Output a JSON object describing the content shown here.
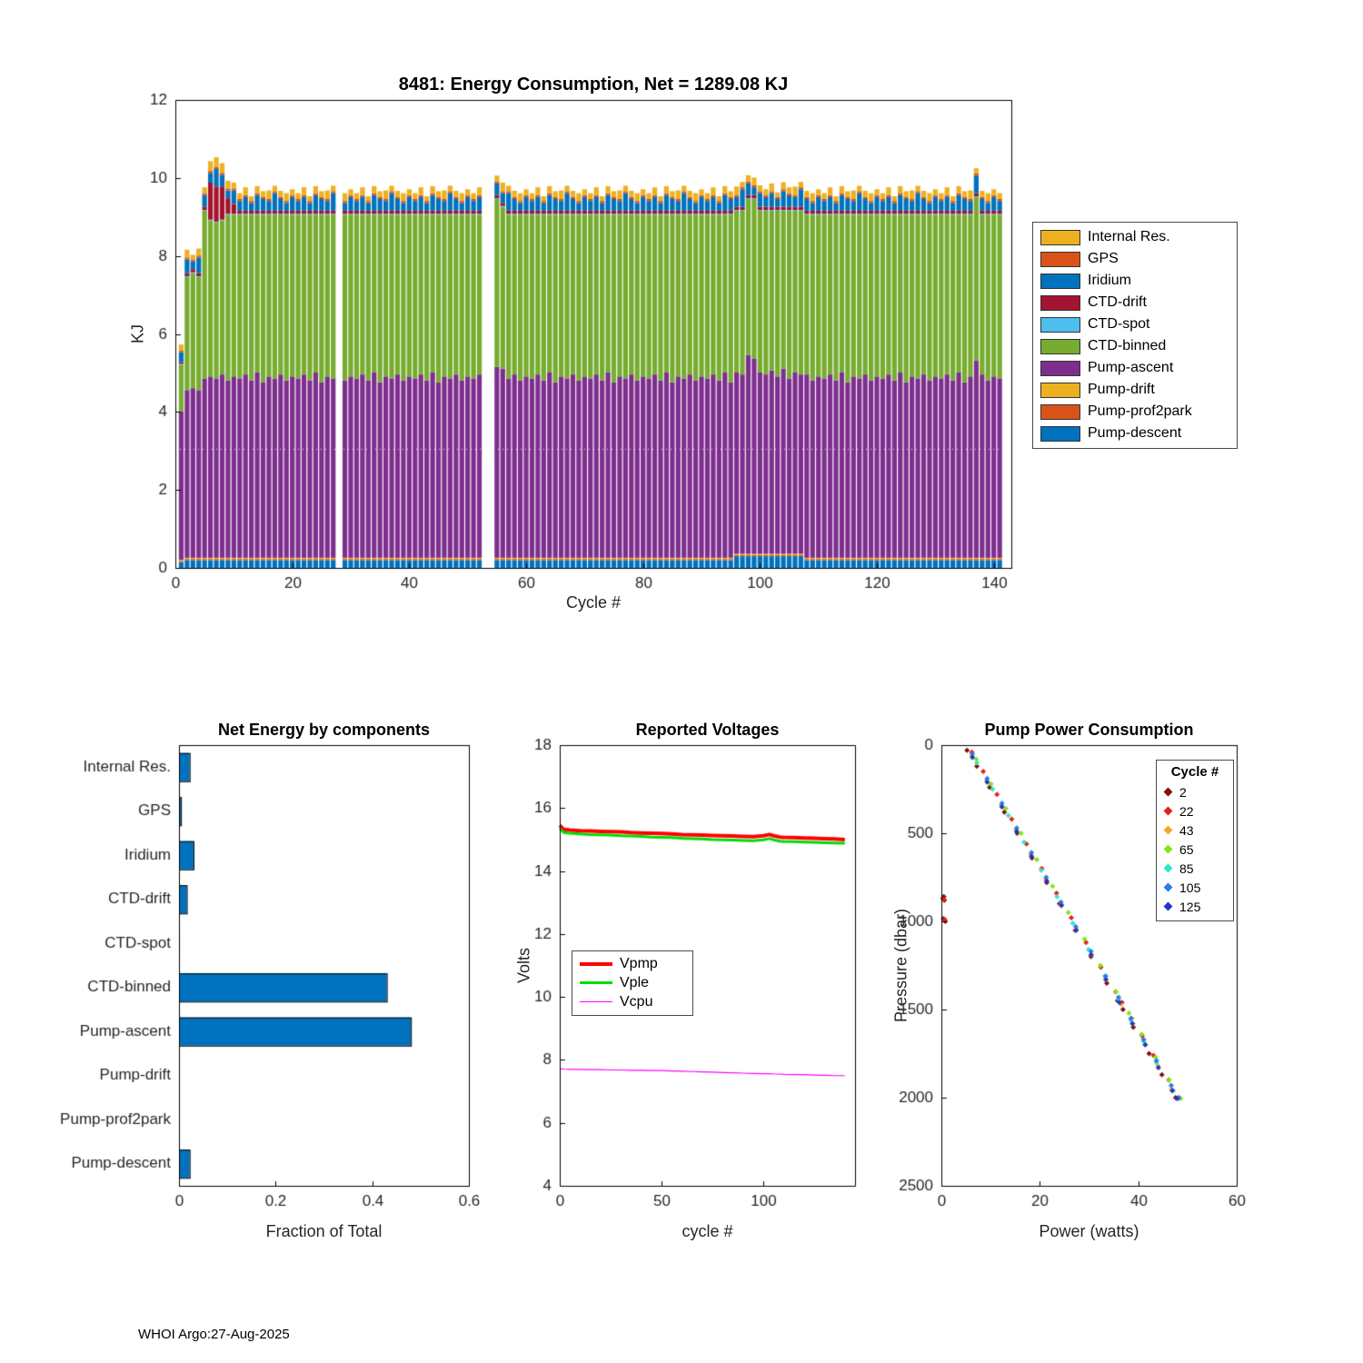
{
  "page": {
    "footer": "WHOI Argo:27-Aug-2025",
    "background": "#FFFFFF"
  },
  "chart_data": [
    {
      "type": "bar",
      "subtype": "stacked-vertical",
      "title": "8481: Energy Consumption,  Net = 1289.08 KJ",
      "float_id": "8481",
      "net_kj": 1289.08,
      "xlabel": "Cycle #",
      "ylabel": "KJ",
      "xlim": [
        0,
        143
      ],
      "ylim": [
        0,
        12
      ],
      "xticks": [
        0,
        20,
        40,
        60,
        80,
        100,
        120,
        140
      ],
      "yticks": [
        0,
        2,
        4,
        6,
        8,
        10,
        12
      ],
      "n_cycles": 141,
      "gap_cycles": [
        28,
        53,
        54
      ],
      "overlay_dashed_line_y": 3.05,
      "legend_position": "right-outside",
      "series": [
        {
          "name": "Internal Res.",
          "color": "#EDB120",
          "pattern": [
            0.15,
            0.2,
            0.12,
            0.18,
            0.15,
            0.22,
            0.14,
            0.16,
            0.2,
            0.15
          ],
          "overrides": {
            "6": 0.25,
            "7": 0.25,
            "8": 0.25
          }
        },
        {
          "name": "GPS",
          "color": "#D95319",
          "constant": 0.05
        },
        {
          "name": "Iridium",
          "color": "#0072BD",
          "pattern": [
            0.25,
            0.35,
            0.2,
            0.4,
            0.3,
            0.25,
            0.45,
            0.3,
            0.2,
            0.35
          ]
        },
        {
          "name": "CTD-drift",
          "color": "#A2142F",
          "constant": 0.08,
          "overrides": {
            "1": 0.05,
            "6": 0.95,
            "7": 0.9,
            "8": 0.85,
            "9": 0.4,
            "10": 0.25
          }
        },
        {
          "name": "CTD-spot",
          "color": "#4DBEEE",
          "constant": 0.02
        },
        {
          "name": "CTD-binned",
          "color": "#77AC30",
          "pattern": [
            4.2,
            4.1,
            4.25,
            4.05,
            4.3,
            4.15,
            4.2,
            4.1,
            4.25,
            4.15
          ],
          "overrides": {
            "1": 1.2,
            "2": 2.9,
            "3": 2.95,
            "4": 2.9,
            "5": 4.3,
            "6": 4.0,
            "7": 4.0,
            "8": 3.95,
            "98": 4.0,
            "99": 4.1
          }
        },
        {
          "name": "Pump-ascent",
          "color": "#7E2F8E",
          "pattern": [
            4.6,
            4.7,
            4.55,
            4.75,
            4.5,
            4.65,
            4.6,
            4.7,
            4.55,
            4.65
          ],
          "overrides": {
            "1": 3.8,
            "2": 4.3,
            "3": 4.35,
            "4": 4.3,
            "5": 4.6,
            "55": 4.9,
            "56": 4.85,
            "98": 5.1,
            "99": 5.0,
            "137": 5.05
          }
        },
        {
          "name": "Pump-drift",
          "color": "#EDB120",
          "constant": 0.03
        },
        {
          "name": "Pump-prof2park",
          "color": "#D95319",
          "constant": 0.03
        },
        {
          "name": "Pump-descent",
          "color": "#0072BD",
          "constant": 0.2,
          "overrides": {
            "1": 0.15,
            "96": 0.3,
            "97": 0.3,
            "98": 0.3,
            "99": 0.3,
            "100": 0.3,
            "101": 0.3,
            "102": 0.3,
            "103": 0.3,
            "104": 0.3,
            "105": 0.3,
            "106": 0.3,
            "107": 0.3
          }
        }
      ]
    },
    {
      "type": "bar",
      "subtype": "horizontal",
      "title": "Net Energy by components",
      "xlabel": "Fraction of Total",
      "bar_color": "#0072BD",
      "xlim": [
        0,
        0.6
      ],
      "xticks": [
        0,
        0.2,
        0.4,
        0.6
      ],
      "categories": [
        "Internal Res.",
        "GPS",
        "Iridium",
        "CTD-drift",
        "CTD-spot",
        "CTD-binned",
        "Pump-ascent",
        "Pump-drift",
        "Pump-prof2park",
        "Pump-descent"
      ],
      "values": [
        0.022,
        0.004,
        0.03,
        0.016,
        0.002,
        0.43,
        0.48,
        0.001,
        0.001,
        0.022
      ]
    },
    {
      "type": "line",
      "title": "Reported Voltages",
      "xlabel": "cycle #",
      "ylabel": "Volts",
      "xlim": [
        0,
        145
      ],
      "ylim": [
        4,
        18
      ],
      "xticks": [
        0,
        50,
        100
      ],
      "yticks": [
        4,
        6,
        8,
        10,
        12,
        14,
        16,
        18
      ],
      "x": [
        0,
        2,
        5,
        10,
        15,
        20,
        25,
        30,
        35,
        40,
        45,
        50,
        55,
        60,
        65,
        70,
        75,
        80,
        85,
        90,
        95,
        100,
        103,
        105,
        108,
        110,
        115,
        120,
        125,
        130,
        135,
        140
      ],
      "series": [
        {
          "name": "Vpmp",
          "color": "#FF0000",
          "line_width": 4,
          "values": [
            15.45,
            15.32,
            15.3,
            15.28,
            15.27,
            15.26,
            15.25,
            15.24,
            15.22,
            15.21,
            15.2,
            15.19,
            15.18,
            15.16,
            15.15,
            15.14,
            15.13,
            15.12,
            15.11,
            15.1,
            15.09,
            15.12,
            15.16,
            15.12,
            15.08,
            15.07,
            15.06,
            15.05,
            15.04,
            15.03,
            15.02,
            15.0
          ]
        },
        {
          "name": "Vple",
          "color": "#00DD00",
          "line_width": 3,
          "values": [
            15.35,
            15.22,
            15.2,
            15.18,
            15.16,
            15.15,
            15.14,
            15.12,
            15.11,
            15.1,
            15.08,
            15.07,
            15.06,
            15.04,
            15.03,
            15.02,
            15.0,
            14.99,
            14.98,
            14.97,
            14.96,
            14.99,
            15.03,
            14.99,
            14.95,
            14.94,
            14.93,
            14.92,
            14.91,
            14.9,
            14.89,
            14.88
          ]
        },
        {
          "name": "Vcpu",
          "color": "#FF00FF",
          "line_width": 1.2,
          "values": [
            7.72,
            7.71,
            7.7,
            7.7,
            7.69,
            7.69,
            7.68,
            7.68,
            7.67,
            7.67,
            7.66,
            7.66,
            7.65,
            7.64,
            7.63,
            7.62,
            7.61,
            7.6,
            7.59,
            7.58,
            7.57,
            7.56,
            7.56,
            7.55,
            7.55,
            7.54,
            7.53,
            7.53,
            7.52,
            7.51,
            7.5,
            7.5
          ]
        }
      ],
      "legend_position": "left-middle-inside"
    },
    {
      "type": "scatter",
      "title": "Pump Power Consumption",
      "xlabel": "Power (watts)",
      "ylabel": "Pressure (dbar)",
      "y_reversed": true,
      "xlim": [
        0,
        60
      ],
      "ylim": [
        0,
        2500
      ],
      "xticks": [
        0,
        20,
        40,
        60
      ],
      "yticks": [
        0,
        500,
        1000,
        1500,
        2000,
        2500
      ],
      "legend_title": "Cycle #",
      "groups": [
        {
          "name": "2",
          "color": "#7F1010",
          "points": [
            [
              5.2,
              30
            ],
            [
              7.2,
              120
            ],
            [
              9.8,
              240
            ],
            [
              12.8,
              380
            ],
            [
              15.4,
              500
            ],
            [
              18.4,
              640
            ],
            [
              21.4,
              780
            ],
            [
              24.0,
              900
            ],
            [
              27.2,
              1050
            ],
            [
              30.4,
              1200
            ],
            [
              33.6,
              1350
            ],
            [
              35.8,
              1450
            ],
            [
              36.9,
              1500
            ],
            [
              39.0,
              1600
            ],
            [
              42.2,
              1750
            ],
            [
              44.8,
              1870
            ],
            [
              47.6,
              2000
            ],
            [
              0.3,
              870
            ],
            [
              0.6,
              880
            ],
            [
              0.4,
              985
            ],
            [
              0.8,
              1000
            ],
            [
              0.5,
              860
            ]
          ]
        },
        {
          "name": "22",
          "color": "#E42217",
          "points": [
            [
              6.2,
              40
            ],
            [
              8.5,
              150
            ],
            [
              11.3,
              280
            ],
            [
              14.3,
              420
            ],
            [
              17.3,
              560
            ],
            [
              20.4,
              700
            ],
            [
              23.4,
              840
            ],
            [
              26.4,
              980
            ],
            [
              29.4,
              1120
            ],
            [
              32.4,
              1260
            ],
            [
              35.4,
              1400
            ],
            [
              36.7,
              1460
            ],
            [
              38.6,
              1550
            ],
            [
              40.8,
              1650
            ],
            [
              43.1,
              1760
            ],
            [
              46.2,
              1900
            ],
            [
              48.3,
              2000
            ],
            [
              0.5,
              875
            ],
            [
              0.7,
              990
            ]
          ]
        },
        {
          "name": "43",
          "color": "#F5A623",
          "points": [
            [
              6.2,
              60
            ],
            [
              9.2,
              200
            ],
            [
              12.2,
              340
            ],
            [
              15.2,
              480
            ],
            [
              18.2,
              620
            ],
            [
              21.2,
              760
            ],
            [
              24.4,
              905
            ],
            [
              27.4,
              1045
            ],
            [
              30.5,
              1190
            ],
            [
              33.5,
              1330
            ],
            [
              36.5,
              1470
            ],
            [
              38.9,
              1580
            ],
            [
              41.5,
              1700
            ],
            [
              44.0,
              1820
            ],
            [
              46.8,
              1950
            ]
          ]
        },
        {
          "name": "65",
          "color": "#7FE817",
          "points": [
            [
              7.1,
              80
            ],
            [
              10.1,
              220
            ],
            [
              13.1,
              360
            ],
            [
              16.2,
              500
            ],
            [
              19.4,
              650
            ],
            [
              22.6,
              800
            ],
            [
              25.8,
              950
            ],
            [
              29.1,
              1100
            ],
            [
              32.3,
              1250
            ],
            [
              35.5,
              1400
            ],
            [
              38.1,
              1520
            ],
            [
              40.7,
              1640
            ],
            [
              43.5,
              1770
            ],
            [
              46.3,
              1900
            ],
            [
              48.6,
              2005
            ]
          ]
        },
        {
          "name": "85",
          "color": "#2EE8C8",
          "points": [
            [
              7.2,
              100
            ],
            [
              10.4,
              250
            ],
            [
              13.6,
              400
            ],
            [
              16.8,
              550
            ],
            [
              20.3,
              710
            ],
            [
              23.5,
              860
            ],
            [
              26.7,
              1010
            ],
            [
              29.9,
              1160
            ],
            [
              33.2,
              1310
            ],
            [
              36.0,
              1440
            ],
            [
              38.5,
              1560
            ],
            [
              41.1,
              1680
            ],
            [
              43.7,
              1800
            ],
            [
              47.1,
              1960
            ]
          ]
        },
        {
          "name": "105",
          "color": "#2B7CE8",
          "points": [
            [
              6.3,
              50
            ],
            [
              9.3,
              190
            ],
            [
              12.3,
              330
            ],
            [
              15.3,
              470
            ],
            [
              18.3,
              610
            ],
            [
              21.3,
              750
            ],
            [
              24.3,
              890
            ],
            [
              27.3,
              1030
            ],
            [
              30.4,
              1170
            ],
            [
              33.4,
              1310
            ],
            [
              36.0,
              1430
            ],
            [
              38.5,
              1550
            ],
            [
              41.1,
              1670
            ],
            [
              43.7,
              1790
            ],
            [
              46.7,
              1930
            ],
            [
              48.2,
              2000
            ]
          ]
        },
        {
          "name": "125",
          "color": "#2334C8",
          "points": [
            [
              6.3,
              70
            ],
            [
              9.3,
              210
            ],
            [
              12.3,
              350
            ],
            [
              15.3,
              490
            ],
            [
              18.3,
              630
            ],
            [
              21.4,
              770
            ],
            [
              24.4,
              910
            ],
            [
              27.4,
              1050
            ],
            [
              30.4,
              1190
            ],
            [
              33.4,
              1330
            ],
            [
              36.2,
              1460
            ],
            [
              38.8,
              1580
            ],
            [
              41.4,
              1700
            ],
            [
              44.1,
              1830
            ],
            [
              46.9,
              1960
            ],
            [
              47.9,
              2005
            ]
          ]
        }
      ]
    }
  ]
}
